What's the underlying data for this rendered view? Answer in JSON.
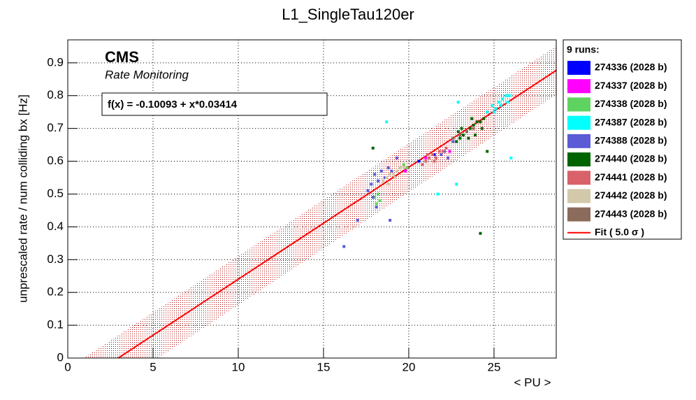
{
  "chart_data": {
    "type": "scatter",
    "title": "L1_SingleTau120er",
    "x_label": "< PU >",
    "y_label": "unprescaled rate / num colliding bx [Hz]",
    "experiment": "CMS",
    "subtitle": "Rate Monitoring",
    "legend_title": "9 runs:",
    "xlim": [
      0,
      28.65
    ],
    "ylim": [
      0,
      0.97
    ],
    "xticks": [
      0,
      5,
      10,
      15,
      20,
      25
    ],
    "yticks": [
      0,
      0.1,
      0.2,
      0.3,
      0.4,
      0.5,
      0.6,
      0.7,
      0.8,
      0.9
    ],
    "grid": true,
    "series": [
      {
        "name": "274336 (2028 b)",
        "color": "#0000ff",
        "x": [
          21.5,
          20.6
        ],
        "values": [
          0.62,
          0.6
        ]
      },
      {
        "name": "274337 (2028 b)",
        "color": "#ff00ff",
        "x": [
          21.0,
          22.4,
          19.8
        ],
        "values": [
          0.61,
          0.63,
          0.57
        ]
      },
      {
        "name": "274338 (2028 b)",
        "color": "#5fd35f",
        "x": [
          18.0,
          18.1,
          18.2,
          18.3,
          19.5,
          19.7,
          19.9
        ],
        "values": [
          0.49,
          0.47,
          0.5,
          0.48,
          0.58,
          0.59,
          0.58
        ]
      },
      {
        "name": "274387 (2028 b)",
        "color": "#00ffff",
        "x": [
          24.6,
          24.9,
          25.1,
          25.3,
          25.5,
          25.7,
          25.9,
          25.0,
          25.4,
          18.7,
          21.7,
          22.8,
          26.0,
          22.9,
          25.8
        ],
        "values": [
          0.75,
          0.77,
          0.76,
          0.78,
          0.79,
          0.8,
          0.8,
          0.75,
          0.77,
          0.72,
          0.5,
          0.53,
          0.61,
          0.78,
          0.78
        ]
      },
      {
        "name": "274388 (2028 b)",
        "color": "#5b5bd6",
        "x": [
          17.6,
          17.8,
          18.0,
          18.2,
          18.4,
          18.6,
          17.9,
          18.8,
          19.0,
          21.9,
          22.1,
          22.3,
          16.2,
          17.0,
          18.1,
          19.3,
          18.9,
          22.6
        ],
        "values": [
          0.51,
          0.53,
          0.56,
          0.54,
          0.57,
          0.55,
          0.49,
          0.58,
          0.57,
          0.62,
          0.63,
          0.61,
          0.34,
          0.42,
          0.46,
          0.61,
          0.42,
          0.66
        ]
      },
      {
        "name": "274440 (2028 b)",
        "color": "#006400",
        "x": [
          22.8,
          23.0,
          23.2,
          23.4,
          23.6,
          23.8,
          24.0,
          24.2,
          24.4,
          23.1,
          23.5,
          23.9,
          24.3,
          17.9,
          24.2,
          24.6,
          22.9,
          23.7
        ],
        "values": [
          0.66,
          0.67,
          0.68,
          0.69,
          0.7,
          0.71,
          0.72,
          0.72,
          0.73,
          0.7,
          0.67,
          0.68,
          0.7,
          0.64,
          0.38,
          0.63,
          0.69,
          0.73
        ]
      },
      {
        "name": "274441 (2028 b)",
        "color": "#d9626a",
        "x": [
          20.8,
          21.0,
          21.2,
          21.4,
          21.6,
          21.8,
          22.0,
          22.2,
          21.1,
          21.5
        ],
        "values": [
          0.59,
          0.6,
          0.61,
          0.62,
          0.61,
          0.63,
          0.63,
          0.64,
          0.62,
          0.6
        ]
      },
      {
        "name": "274442 (2028 b)",
        "color": "#d2c8aa",
        "x": [
          18.5,
          18.7,
          18.9,
          19.1,
          19.3,
          19.5,
          19.7,
          18.8,
          19.2
        ],
        "values": [
          0.54,
          0.55,
          0.56,
          0.56,
          0.57,
          0.58,
          0.58,
          0.53,
          0.55
        ]
      },
      {
        "name": "274443 (2028 b)",
        "color": "#8b6b5b",
        "x": [
          22.6,
          23.0,
          23.4,
          23.8
        ],
        "values": [
          0.67,
          0.68,
          0.69,
          0.7
        ]
      }
    ],
    "fit": {
      "name": "Fit ( 5.0 σ )",
      "label": "f(x) = -0.10093 + x*0.03414",
      "color": "#ff0000",
      "x": [
        2.96,
        28.65
      ],
      "values": [
        0,
        0.877
      ]
    },
    "band": {
      "color": "#b40000",
      "x_upper": [
        0.94,
        28.65
      ],
      "upper": [
        0,
        0.951
      ],
      "x_lower": [
        5.29,
        28.65
      ],
      "lower": [
        0,
        0.803
      ]
    }
  }
}
